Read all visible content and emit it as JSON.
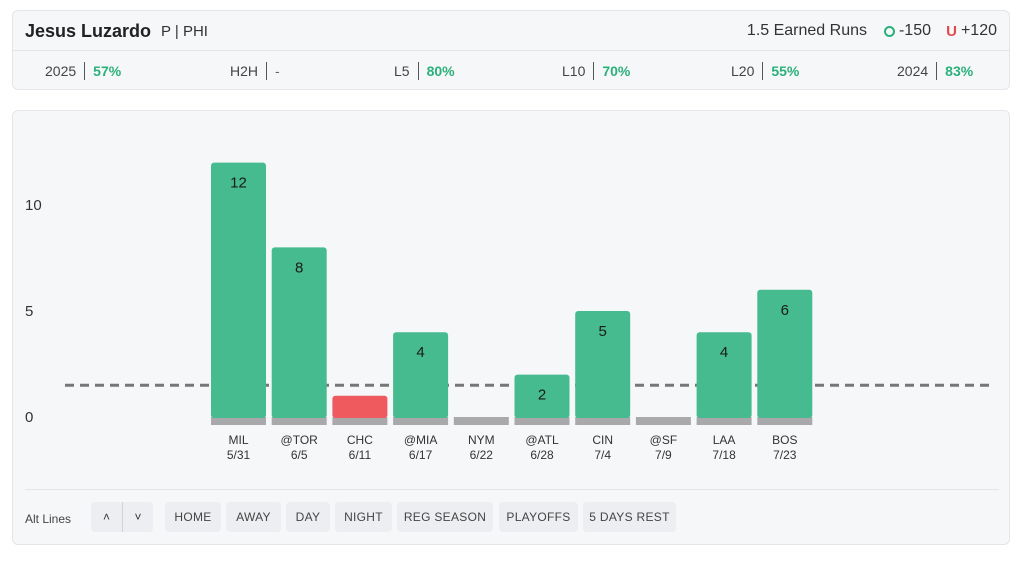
{
  "header": {
    "player_name": "Jesus Luzardo",
    "player_pos": "P | PHI",
    "market": "1.5 Earned Runs",
    "over": "-150",
    "under": "+120",
    "under_symbol": "U"
  },
  "stats": [
    {
      "label": "2025",
      "value": "57%"
    },
    {
      "label": "H2H",
      "value": "-"
    },
    {
      "label": "L5",
      "value": "80%"
    },
    {
      "label": "L10",
      "value": "70%"
    },
    {
      "label": "L20",
      "value": "55%"
    },
    {
      "label": "2024",
      "value": "83%"
    }
  ],
  "colors": {
    "over": "#46bb8f",
    "under": "#ef5a5f",
    "base": "#a9a9ab",
    "line": "#777777"
  },
  "chart_data": {
    "type": "bar",
    "y_ticks": [
      0,
      5,
      10
    ],
    "ylim": [
      0,
      12.5
    ],
    "threshold": 1.5,
    "series": [
      {
        "values": [
          12,
          8,
          1,
          4,
          0,
          2,
          5,
          0,
          4,
          6
        ],
        "labels": [
          "12",
          "8",
          "",
          "4",
          "",
          "2",
          "5",
          "",
          "4",
          "6"
        ],
        "outcomes": [
          "over",
          "over",
          "under",
          "over",
          "under",
          "over",
          "over",
          "under",
          "over",
          "over"
        ]
      }
    ],
    "categories": [
      {
        "team": "MIL",
        "date": "5/31"
      },
      {
        "team": "@TOR",
        "date": "6/5"
      },
      {
        "team": "CHC",
        "date": "6/11"
      },
      {
        "team": "@MIA",
        "date": "6/17"
      },
      {
        "team": "NYM",
        "date": "6/22"
      },
      {
        "team": "@ATL",
        "date": "6/28"
      },
      {
        "team": "CIN",
        "date": "7/4"
      },
      {
        "team": "@SF",
        "date": "7/9"
      },
      {
        "team": "LAA",
        "date": "7/18"
      },
      {
        "team": "BOS",
        "date": "7/23"
      }
    ]
  },
  "filters": {
    "alt_lines_label": "Alt Lines",
    "up_symbol": "˄",
    "down_symbol": "˅",
    "chips": [
      "HOME",
      "AWAY",
      "DAY",
      "NIGHT",
      "REG SEASON",
      "PLAYOFFS",
      "5 DAYS REST"
    ]
  }
}
